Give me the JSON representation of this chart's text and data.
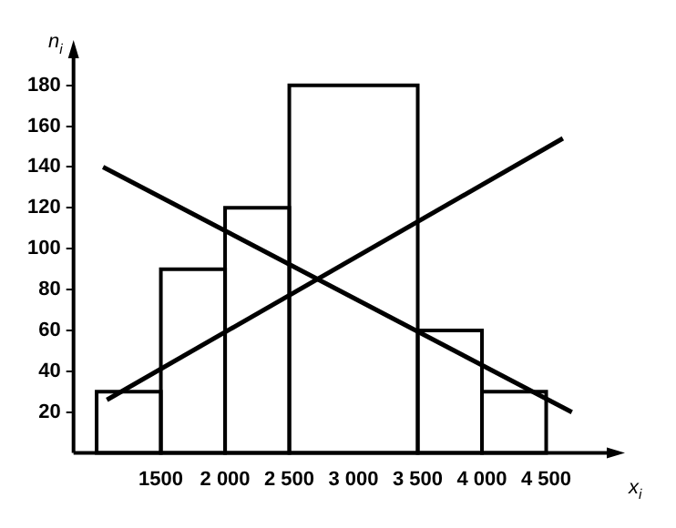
{
  "chart_data": {
    "type": "histogram",
    "xlabel": "x$_{i}$",
    "ylabel": "n$_{i}$",
    "bins": [
      1000,
      1500,
      2000,
      2500,
      3500,
      4000,
      4500
    ],
    "values": [
      30,
      90,
      120,
      180,
      60,
      30
    ],
    "color": "#000000",
    "series": [
      {
        "type": "line",
        "x": [
          1050,
          4700
        ],
        "values": [
          140,
          20
        ],
        "color": "#000000"
      },
      {
        "type": "line",
        "x": [
          1080,
          4630
        ],
        "values": [
          26,
          154
        ],
        "color": "#000000"
      }
    ],
    "xlim": [
      820,
      5000
    ],
    "ylim": [
      0,
      195
    ],
    "xticks": [
      1500,
      {
        "value": 2000,
        "label": "2 000"
      },
      {
        "value": 2500,
        "label": "2 500"
      },
      {
        "value": 3000,
        "label": "3 000"
      },
      {
        "value": 3500,
        "label": "3 500"
      },
      {
        "value": 4000,
        "label": "4 000"
      },
      {
        "value": 4500,
        "label": "4 500"
      }
    ],
    "yticks": [
      20,
      40,
      60,
      80,
      100,
      120,
      140,
      160,
      180
    ],
    "grid": false,
    "legend": false,
    "marker": "none",
    "line_style": "solid"
  }
}
